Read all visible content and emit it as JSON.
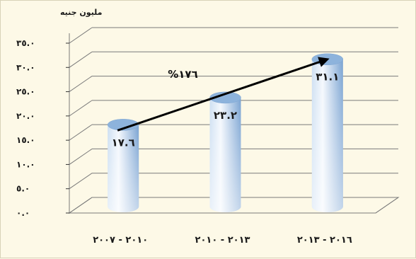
{
  "chart_data": {
    "type": "bar",
    "style": "3d-cylinder",
    "unit_label": "مليون جنيه",
    "categories": [
      "٢٠١٠ - ٢٠٠٧",
      "٢٠١٣ - ٢٠١٠",
      "٢٠١٦ - ٢٠١٣"
    ],
    "values": [
      17.6,
      23.2,
      31.1
    ],
    "data_labels": [
      "١٧.٦",
      "٢٣.٢",
      "٣١.١"
    ],
    "ylim": [
      0,
      35
    ],
    "yticks": [
      0,
      5,
      10,
      15,
      20,
      25,
      30,
      35
    ],
    "ytick_labels": [
      "٠.٠",
      "٥.٠",
      "١٠.٠",
      "١٥.٠",
      "٢٠.٠",
      "٢٥.٠",
      "٣٠.٠",
      "٣٥.٠"
    ],
    "grid": true,
    "annotation": {
      "label": "%١٧٦",
      "type": "arrow",
      "from_category": 0,
      "to_category": 2
    },
    "colors": {
      "bar_top": "#8db3dc",
      "bar_side_light": "#eef4fb",
      "bar_side_dark": "#5d8fc8",
      "grid": "#7a7a7a",
      "arrow": "#000000"
    }
  }
}
